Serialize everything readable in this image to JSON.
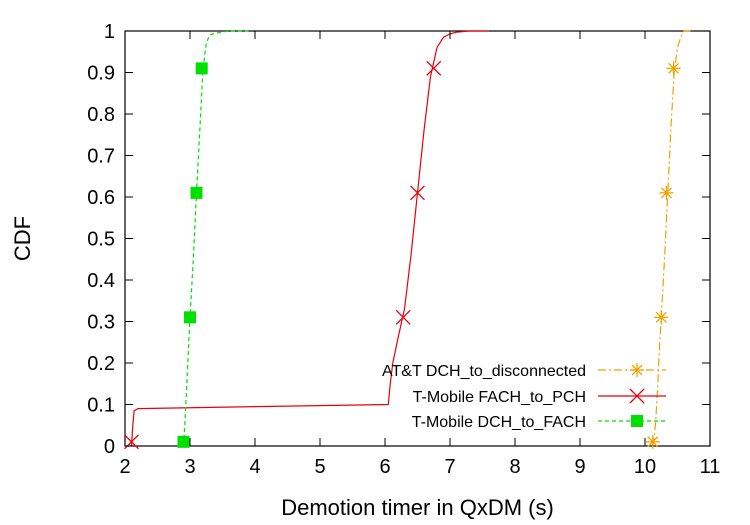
{
  "chart_data": {
    "type": "line",
    "xlabel": "Demotion timer in QxDM (s)",
    "ylabel": "CDF",
    "xlim": [
      2,
      11
    ],
    "ylim": [
      0,
      1
    ],
    "xticks": [
      "2",
      "3",
      "4",
      "5",
      "6",
      "7",
      "8",
      "9",
      "10",
      "11"
    ],
    "yticks": [
      "0",
      "0.1",
      "0.2",
      "0.3",
      "0.4",
      "0.5",
      "0.6",
      "0.7",
      "0.8",
      "0.9",
      "1"
    ],
    "grid": false,
    "legend_position": "bottom-right",
    "series": [
      {
        "name": "AT&T DCH_to_disconnected",
        "color": "#f0a000",
        "dash": "dash-dot",
        "marker": "star",
        "x": [
          10.12,
          10.14,
          10.16,
          10.18,
          10.2,
          10.22,
          10.25,
          10.3,
          10.35,
          10.4,
          10.45,
          10.5,
          10.55,
          10.6,
          10.7
        ],
        "y": [
          0,
          0.02,
          0.05,
          0.1,
          0.16,
          0.23,
          0.31,
          0.45,
          0.61,
          0.77,
          0.9,
          0.96,
          0.985,
          1,
          1
        ],
        "marker_x": [
          10.12,
          10.25,
          10.33,
          10.44
        ],
        "marker_y": [
          0.01,
          0.31,
          0.61,
          0.91
        ]
      },
      {
        "name": "T-Mobile FACH_to_PCH",
        "color": "#e8000b",
        "dash": "solid",
        "marker": "cross",
        "x": [
          2.1,
          2.12,
          2.14,
          2.2,
          4,
          6.05,
          6.08,
          6.12,
          6.2,
          6.3,
          6.4,
          6.5,
          6.6,
          6.7,
          6.8,
          6.9,
          7.0,
          7.1,
          7.3,
          7.6
        ],
        "y": [
          0,
          0.05,
          0.085,
          0.09,
          0.095,
          0.1,
          0.15,
          0.2,
          0.26,
          0.33,
          0.46,
          0.61,
          0.76,
          0.89,
          0.96,
          0.985,
          0.993,
          0.997,
          1,
          1
        ],
        "marker_x": [
          2.1,
          6.28,
          6.5,
          6.75
        ],
        "marker_y": [
          0.01,
          0.31,
          0.61,
          0.91
        ]
      },
      {
        "name": "T-Mobile DCH_to_FACH",
        "color": "#00e000",
        "dash": "dashed",
        "marker": "square",
        "x": [
          2.9,
          2.92,
          2.95,
          3.0,
          3.05,
          3.1,
          3.15,
          3.2,
          3.25,
          3.3,
          3.4,
          3.6,
          3.9
        ],
        "y": [
          0,
          0.05,
          0.15,
          0.31,
          0.45,
          0.61,
          0.76,
          0.91,
          0.97,
          0.99,
          0.995,
          1,
          1
        ],
        "marker_x": [
          2.9,
          3.0,
          3.1,
          3.18
        ],
        "marker_y": [
          0.01,
          0.31,
          0.61,
          0.91
        ]
      }
    ]
  }
}
